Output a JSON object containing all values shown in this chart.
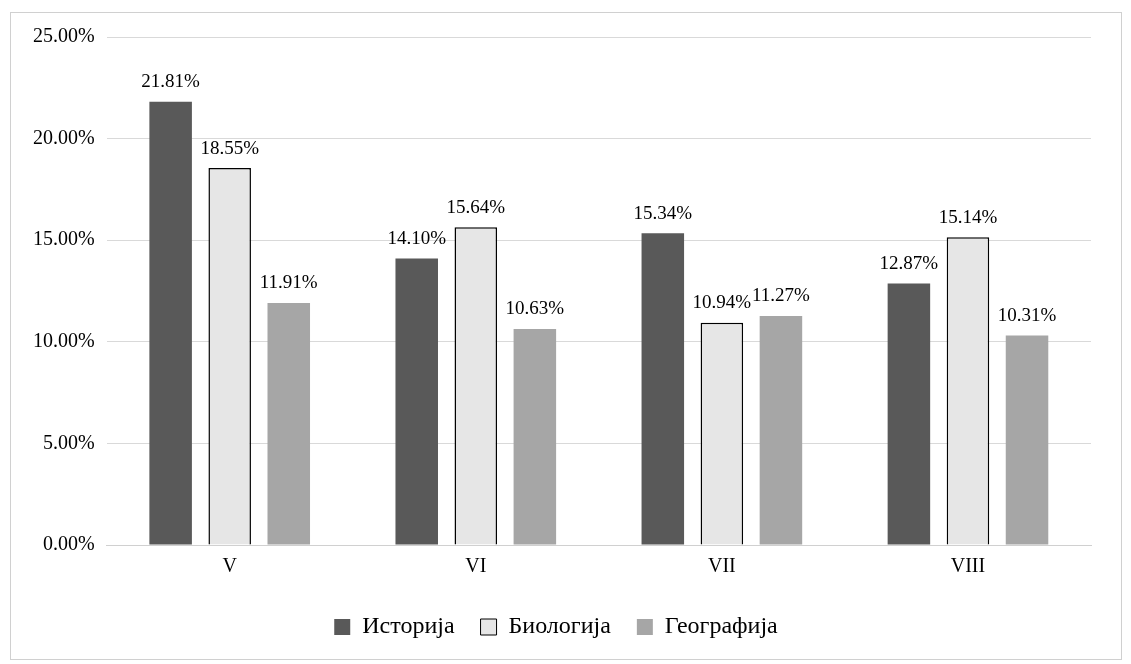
{
  "chart_data": {
    "type": "bar",
    "categories": [
      "V",
      "VI",
      "VII",
      "VIII"
    ],
    "series": [
      {
        "name": "Историја",
        "color": "#595959",
        "values": [
          21.81,
          14.1,
          15.34,
          12.87
        ],
        "value_labels": [
          "21.81%",
          "14.10%",
          "15.34%",
          "12.87%"
        ]
      },
      {
        "name": "Биологија",
        "color": "#e6e6e6",
        "values": [
          18.55,
          15.64,
          10.94,
          15.14
        ],
        "value_labels": [
          "18.55%",
          "15.64%",
          "10.94%",
          "15.14%"
        ]
      },
      {
        "name": "Географија",
        "color": "#a6a6a6",
        "values": [
          11.91,
          10.63,
          11.27,
          10.31
        ],
        "value_labels": [
          "11.91%",
          "10.63%",
          "11.27%",
          "10.31%"
        ]
      }
    ],
    "ylim": [
      0,
      25
    ],
    "yticks": [
      {
        "value": 0,
        "label": "0.00%"
      },
      {
        "value": 5,
        "label": "5.00%"
      },
      {
        "value": 10,
        "label": "10.00%"
      },
      {
        "value": 15,
        "label": "15.00%"
      },
      {
        "value": 20,
        "label": "20.00%"
      },
      {
        "value": 25,
        "label": "25.00%"
      }
    ],
    "grid": "y",
    "legend": "bottom"
  }
}
